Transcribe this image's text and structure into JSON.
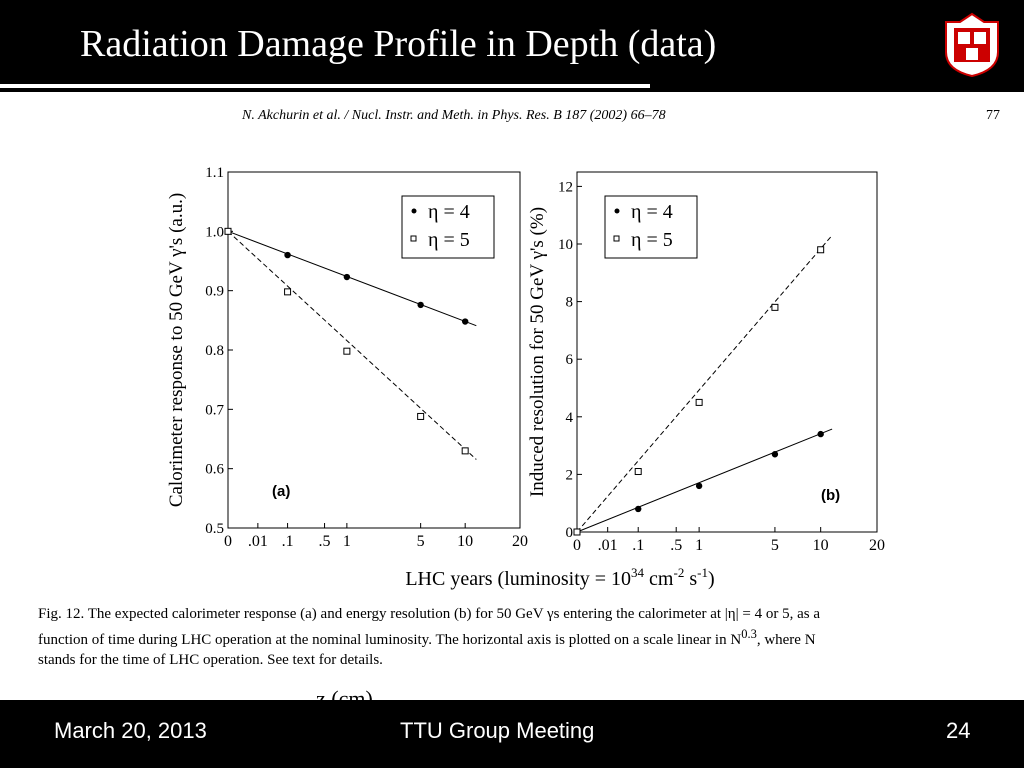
{
  "slide": {
    "title": "Radiation Damage Profile in Depth (data)",
    "footer_date": "March 20, 2013",
    "footer_event": "TTU Group Meeting",
    "footer_page": "24",
    "extra_label": "z (cm)"
  },
  "paper": {
    "header": "N. Akchurin et al. / Nucl. Instr. and Meth. in Phys. Res. B 187 (2002) 66–78",
    "page": "77",
    "caption_line1": "Fig. 12. The expected calorimeter response (a) and energy resolution (b) for 50 GeV γs entering the calorimeter at |η| = 4 or 5, as a",
    "caption_line2": "function of time during LHC operation at the nominal luminosity. The horizontal axis is plotted on a scale linear in N",
    "caption_sup": "0.3",
    "caption_line2b": ", where N",
    "caption_line3": "stands for the time of LHC operation. See text for details."
  },
  "chart_data": [
    {
      "type": "scatter",
      "panel_label": "(a)",
      "ylabel": "Calorimeter response to 50 GeV γ's (a.u.)",
      "xlabel": "LHC years (luminosity = 10",
      "xlabel_sup1": "34",
      "xlabel_mid": " cm",
      "xlabel_sup2": "-2",
      "xlabel_mid2": " s",
      "xlabel_sup3": "-1",
      "xlabel_end": ")",
      "x_scale": "N^0.3",
      "xlim": [
        0,
        20
      ],
      "ylim": [
        0.5,
        1.1
      ],
      "x_ticks": [
        0,
        0.01,
        0.1,
        0.5,
        1,
        5,
        10,
        20
      ],
      "x_tick_labels": [
        "0",
        ".01",
        ".1",
        ".5",
        "1",
        "5",
        "10",
        "20"
      ],
      "y_ticks": [
        0.5,
        0.6,
        0.7,
        0.8,
        0.9,
        1.0,
        1.1
      ],
      "y_tick_labels": [
        "0.5",
        "0.6",
        "0.7",
        "0.8",
        "0.9",
        "1.0",
        "1.1"
      ],
      "legend_position": "top-right",
      "series": [
        {
          "name": "η = 4",
          "marker": "filled-circle",
          "line": "solid",
          "x": [
            0,
            0.1,
            1,
            5,
            10
          ],
          "y": [
            1.0,
            0.96,
            0.923,
            0.876,
            0.848
          ]
        },
        {
          "name": "η = 5",
          "marker": "open-square",
          "line": "dashed",
          "x": [
            0,
            0.1,
            1,
            5,
            10
          ],
          "y": [
            1.0,
            0.898,
            0.798,
            0.688,
            0.63
          ]
        }
      ]
    },
    {
      "type": "scatter",
      "panel_label": "(b)",
      "ylabel": "Induced resolution for 50 GeV γ's (%)",
      "x_scale": "N^0.3",
      "xlim": [
        0,
        20
      ],
      "ylim": [
        0,
        12.5
      ],
      "x_ticks": [
        0,
        0.01,
        0.1,
        0.5,
        1,
        5,
        10,
        20
      ],
      "x_tick_labels": [
        "0",
        ".01",
        ".1",
        ".5",
        "1",
        "5",
        "10",
        "20"
      ],
      "y_ticks": [
        0,
        2,
        4,
        6,
        8,
        10,
        12
      ],
      "y_tick_labels": [
        "0",
        "2",
        "4",
        "6",
        "8",
        "10",
        "12"
      ],
      "legend_position": "top-left",
      "series": [
        {
          "name": "η = 4",
          "marker": "filled-circle",
          "line": "solid",
          "x": [
            0,
            0.1,
            1,
            5,
            10
          ],
          "y": [
            0,
            0.8,
            1.6,
            2.7,
            3.4
          ]
        },
        {
          "name": "η = 5",
          "marker": "open-square",
          "line": "dashed",
          "x": [
            0,
            0.1,
            1,
            5,
            10
          ],
          "y": [
            0,
            2.1,
            4.5,
            7.8,
            9.8
          ]
        }
      ]
    }
  ]
}
